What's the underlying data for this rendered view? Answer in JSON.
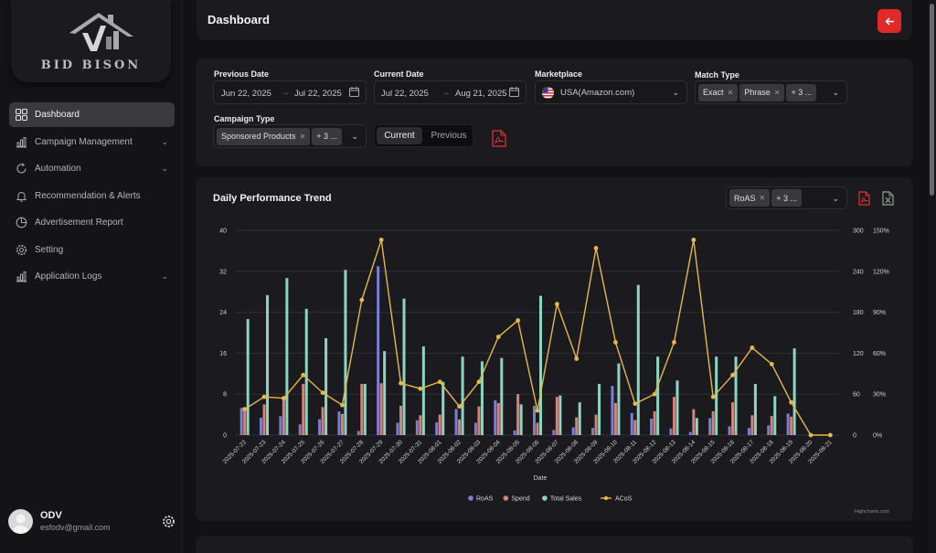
{
  "brand": {
    "name": "BID BISON"
  },
  "sidebar": {
    "items": [
      {
        "label": "Dashboard",
        "icon": "dashboard-icon",
        "active": true,
        "has_submenu": false
      },
      {
        "label": "Campaign Management",
        "icon": "bar-chart-icon",
        "has_submenu": true
      },
      {
        "label": "Automation",
        "icon": "automation-icon",
        "has_submenu": true
      },
      {
        "label": "Recommendation & Alerts",
        "icon": "bell-icon",
        "has_submenu": false
      },
      {
        "label": "Advertisement Report",
        "icon": "pie-chart-icon",
        "has_submenu": false
      },
      {
        "label": "Setting",
        "icon": "gear-icon",
        "has_submenu": false
      },
      {
        "label": "Application Logs",
        "icon": "bar-chart-icon",
        "has_submenu": true
      }
    ],
    "user": {
      "name": "ODV",
      "email": "esfodv@gmail.com"
    }
  },
  "header": {
    "title": "Dashboard"
  },
  "filters": {
    "previous_date": {
      "label": "Previous Date",
      "from": "Jun 22, 2025",
      "to": "Jul 22, 2025"
    },
    "current_date": {
      "label": "Current Date",
      "from": "Jul 22, 2025",
      "to": "Aug 21, 2025"
    },
    "marketplace": {
      "label": "Marketplace",
      "value": "USA(Amazon.com)"
    },
    "match_type": {
      "label": "Match Type",
      "chips": [
        "Exact",
        "Phrase"
      ],
      "more": "+ 3 ..."
    },
    "campaign_type": {
      "label": "Campaign Type",
      "chips": [
        "Sponsored Products"
      ],
      "more": "+ 3 ..."
    },
    "toggle": {
      "current": "Current",
      "previous": "Previous"
    }
  },
  "chart_panel": {
    "title": "Daily Performance Trend",
    "metric_chip": "RoAS",
    "metric_more": "+ 3 ...",
    "credits": "Highcharts.com"
  },
  "chart_data": {
    "type": "bar",
    "xlabel": "Date",
    "categories": [
      "2025-07-22",
      "2025-07-23",
      "2025-07-24",
      "2025-07-25",
      "2025-07-26",
      "2025-07-27",
      "2025-07-28",
      "2025-07-29",
      "2025-07-30",
      "2025-07-31",
      "2025-08-01",
      "2025-08-02",
      "2025-08-03",
      "2025-08-04",
      "2025-08-05",
      "2025-08-06",
      "2025-08-07",
      "2025-08-08",
      "2025-08-09",
      "2025-08-10",
      "2025-08-11",
      "2025-08-12",
      "2025-08-13",
      "2025-08-14",
      "2025-08-15",
      "2025-08-16",
      "2025-08-17",
      "2025-08-18",
      "2025-08-19",
      "2025-08-20",
      "2025-08-21"
    ],
    "left_axis": {
      "ticks": [
        0,
        8,
        16,
        24,
        32,
        40
      ],
      "ylim": [
        0,
        40
      ]
    },
    "mid_axis": {
      "ticks": [
        0,
        60,
        120,
        180,
        240,
        300
      ],
      "ylim": [
        0,
        300
      ]
    },
    "right_axis": {
      "ticks": [
        "0%",
        "30%",
        "60%",
        "90%",
        "120%",
        "150%"
      ],
      "ylim": [
        0,
        150
      ]
    },
    "series": [
      {
        "name": "RoAS",
        "type": "bar",
        "color": "#7b7fd4",
        "axis": "left",
        "values": [
          5.3,
          3.4,
          3.7,
          2.1,
          3.1,
          4.6,
          0.8,
          33.0,
          2.4,
          2.9,
          2.5,
          5.1,
          2.4,
          6.8,
          0.9,
          5.7,
          1.0,
          1.5,
          1.4,
          9.6,
          4.3,
          3.2,
          1.3,
          0.6,
          3.3,
          1.7,
          1.4,
          1.9,
          4.2,
          0,
          0
        ]
      },
      {
        "name": "Spend",
        "type": "bar",
        "color": "#d4837a",
        "axis": "mid",
        "values": [
          38,
          45,
          56,
          75,
          41,
          31,
          75,
          76,
          43,
          29,
          30,
          23,
          42,
          47,
          60,
          18,
          56,
          26,
          30,
          47,
          22,
          35,
          56,
          38,
          35,
          48,
          29,
          28,
          27,
          0,
          0
        ]
      },
      {
        "name": "Total Sales",
        "type": "bar",
        "color": "#8fd4c1",
        "axis": "mid",
        "values": [
          170,
          205,
          230,
          185,
          142,
          242,
          75,
          123,
          200,
          130,
          78,
          115,
          108,
          113,
          45,
          204,
          58,
          48,
          75,
          105,
          220,
          115,
          80,
          25,
          115,
          115,
          75,
          57,
          127,
          0,
          0
        ]
      },
      {
        "name": "ACoS",
        "type": "line",
        "color": "#e6b84a",
        "axis": "right",
        "values": [
          19,
          28,
          27,
          44,
          31,
          22,
          99,
          143,
          38,
          34,
          39,
          21,
          39,
          72,
          84,
          18,
          96,
          56,
          137,
          68,
          23,
          30,
          68,
          143,
          28,
          44,
          64,
          52,
          24,
          0,
          0
        ]
      }
    ],
    "legend": {
      "placement": "bottom-center"
    },
    "grid": true
  },
  "colors": {
    "accent": "#e02a2a",
    "card": "#1b1b1f",
    "bg": "#121214"
  }
}
